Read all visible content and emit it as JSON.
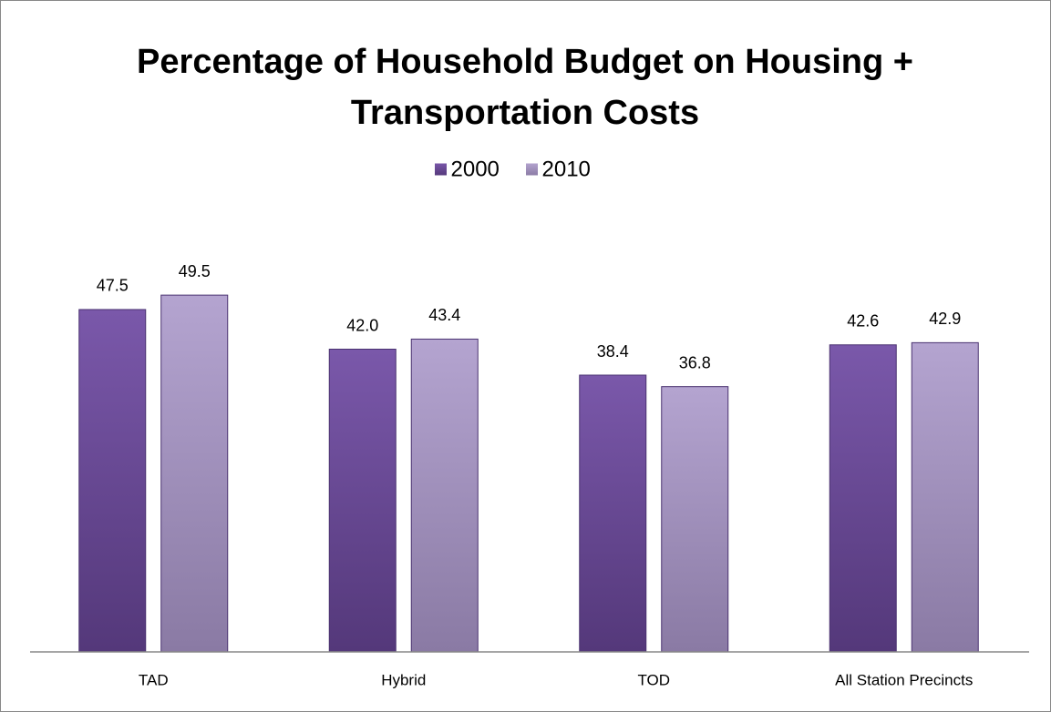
{
  "chart_data": {
    "type": "bar",
    "title": "Percentage of Household Budget on Housing + Transportation Costs",
    "categories": [
      "TAD",
      "Hybrid",
      "TOD",
      "All Station Precincts"
    ],
    "series": [
      {
        "name": "2000",
        "color": "#6a4a96",
        "values": [
          47.5,
          42.0,
          38.4,
          42.6
        ],
        "value_labels": [
          "47.5",
          "42.0",
          "38.4",
          "42.6"
        ]
      },
      {
        "name": "2010",
        "color": "#a694c4",
        "values": [
          49.5,
          43.4,
          36.8,
          42.9
        ],
        "value_labels": [
          "49.5",
          "43.4",
          "36.8",
          "42.9"
        ]
      }
    ],
    "ylim": [
      0,
      60
    ],
    "legend": "top"
  }
}
